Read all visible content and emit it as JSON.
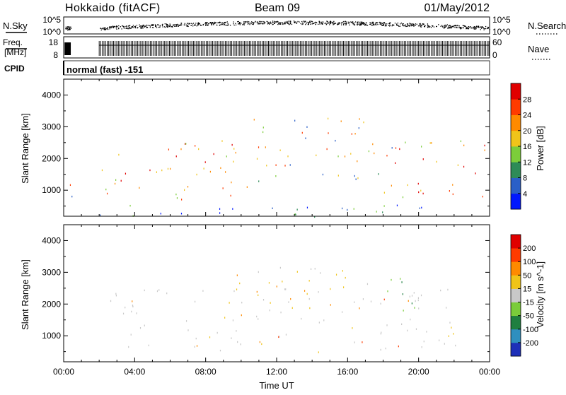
{
  "header": {
    "station": "Hokkaido (fitACF)",
    "beam": "Beam 09",
    "date": "01/May/2012"
  },
  "noise_panel": {
    "left_label": "N.Sky",
    "left_ticks": [
      "10^5",
      "10^0"
    ],
    "right_label": "N.Search",
    "right_ticks": [
      "10^5",
      "10^0"
    ],
    "data_gap": [
      "00:15",
      "02:00"
    ]
  },
  "freq_panel": {
    "left_label_top": "Freq.",
    "left_label_bottom": "[MHz]",
    "left_ticks": [
      "18",
      "8"
    ],
    "right_label": "Nave",
    "right_ticks": [
      "60",
      "0"
    ]
  },
  "cpid": {
    "label": "CPID",
    "text": "normal (fast) -151"
  },
  "chart_data": [
    {
      "type": "heatmap",
      "name": "power",
      "xlabel": "",
      "ylabel": "Slant Range [km]",
      "x_ticks": [
        "00:00",
        "04:00",
        "08:00",
        "12:00",
        "16:00",
        "20:00",
        "00:00"
      ],
      "xlim_hours": [
        0,
        24
      ],
      "ylim": [
        180,
        4500
      ],
      "y_ticks": [
        1000,
        2000,
        3000,
        4000
      ],
      "colorbar": {
        "label": "Power [dB]",
        "ticks": [
          "4",
          "8",
          "12",
          "16",
          "20",
          "24",
          "28"
        ],
        "colors": [
          "#0018ff",
          "#2a5fc7",
          "#2e8b57",
          "#7ccd3a",
          "#f0c419",
          "#ff8a00",
          "#ff3b00",
          "#e00000"
        ]
      },
      "regions": [
        {
          "t": [
            0.1,
            0.5
          ],
          "range_km": [
            800,
            2300
          ],
          "level": "mid"
        },
        {
          "t": [
            2.0,
            10.5
          ],
          "range_km": [
            700,
            2600
          ],
          "level": "high"
        },
        {
          "t": [
            2.0,
            22.3
          ],
          "range_km": [
            180,
            600
          ],
          "level": "low"
        },
        {
          "t": [
            10.5,
            18.5
          ],
          "range_km": [
            1300,
            3300
          ],
          "level": "mid"
        },
        {
          "t": [
            18.0,
            24.0
          ],
          "range_km": [
            800,
            2600
          ],
          "level": "high"
        }
      ]
    },
    {
      "type": "heatmap",
      "name": "velocity",
      "xlabel": "Time UT",
      "ylabel": "Slant Range [km]",
      "x_ticks": [
        "00:00",
        "04:00",
        "08:00",
        "12:00",
        "16:00",
        "20:00",
        "00:00"
      ],
      "xlim_hours": [
        0,
        24
      ],
      "ylim": [
        180,
        4500
      ],
      "y_ticks": [
        1000,
        2000,
        3000,
        4000
      ],
      "colorbar": {
        "label": "Velocity [m s^-1]",
        "ticks": [
          "200",
          "100",
          "50",
          "15",
          "-15",
          "-50",
          "-100",
          "-200"
        ],
        "colors": [
          "#1d2fb8",
          "#2f8fbf",
          "#1f7f3f",
          "#7acc3a",
          "#c8c8c8",
          "#f0c419",
          "#ff8a00",
          "#ff3b00",
          "#e00000"
        ]
      },
      "regions": [
        {
          "t": [
            2.0,
            22.3
          ],
          "range_km": [
            500,
            2500
          ],
          "level": "ground"
        },
        {
          "t": [
            9.0,
            16.0
          ],
          "range_km": [
            1800,
            3200
          ],
          "level": "away"
        },
        {
          "t": [
            17.0,
            20.0
          ],
          "range_km": [
            1800,
            3000
          ],
          "level": "toward"
        }
      ]
    }
  ]
}
